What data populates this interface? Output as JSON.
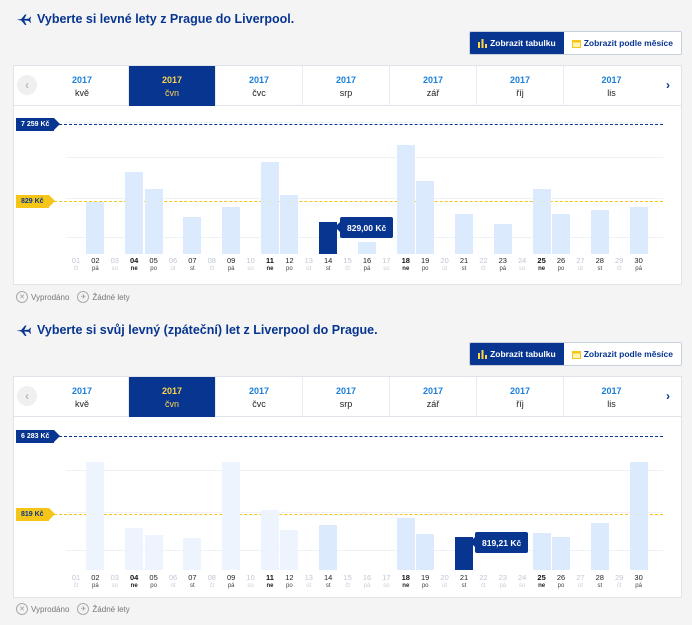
{
  "toggle": {
    "table_label": "Zobrazit tabulku",
    "month_label": "Zobrazit podle měsíce"
  },
  "legend": {
    "sold_out": "Vyprodáno",
    "no_flights": "Žádné lety"
  },
  "colors": {
    "brand": "#073590",
    "accent_yellow": "#f5c518",
    "bar": "#dbeafc",
    "bar_light": "#edf4fd"
  },
  "outbound": {
    "title": "Vyberte si levné lety z Prague do Liverpool.",
    "months": [
      {
        "year": "2017",
        "name": "kvě",
        "active": false
      },
      {
        "year": "2017",
        "name": "čvn",
        "active": true
      },
      {
        "year": "2017",
        "name": "čvc",
        "active": false
      },
      {
        "year": "2017",
        "name": "srp",
        "active": false
      },
      {
        "year": "2017",
        "name": "zář",
        "active": false
      },
      {
        "year": "2017",
        "name": "říj",
        "active": false
      },
      {
        "year": "2017",
        "name": "lis",
        "active": false
      }
    ],
    "max_price": "7 259 Kč",
    "avg_price": "829 Kč",
    "selected_price": "829,00 Kč",
    "days": [
      {
        "d": "01",
        "w": "čt",
        "s": "none",
        "b": 0
      },
      {
        "d": "02",
        "w": "pá",
        "s": "avail",
        "b": 0
      },
      {
        "d": "03",
        "w": "so",
        "s": "none",
        "b": 0
      },
      {
        "d": "04",
        "w": "ne",
        "s": "bold",
        "b": 0
      },
      {
        "d": "05",
        "w": "po",
        "s": "avail",
        "b": 0
      },
      {
        "d": "06",
        "w": "út",
        "s": "none",
        "b": 0
      },
      {
        "d": "07",
        "w": "st",
        "s": "avail",
        "b": 0
      },
      {
        "d": "08",
        "w": "čt",
        "s": "none",
        "b": 0
      },
      {
        "d": "09",
        "w": "pá",
        "s": "avail",
        "b": 0
      },
      {
        "d": "10",
        "w": "so",
        "s": "none",
        "b": 0
      },
      {
        "d": "11",
        "w": "ne",
        "s": "bold",
        "b": 0
      },
      {
        "d": "12",
        "w": "po",
        "s": "avail",
        "b": 0
      },
      {
        "d": "13",
        "w": "út",
        "s": "none",
        "b": 0
      },
      {
        "d": "14",
        "w": "st",
        "s": "avail",
        "b": 0
      },
      {
        "d": "15",
        "w": "čt",
        "s": "none",
        "b": 0
      },
      {
        "d": "16",
        "w": "pá",
        "s": "avail",
        "b": 0
      },
      {
        "d": "17",
        "w": "so",
        "s": "none",
        "b": 0
      },
      {
        "d": "18",
        "w": "ne",
        "s": "bold",
        "b": 0
      },
      {
        "d": "19",
        "w": "po",
        "s": "avail",
        "b": 0
      },
      {
        "d": "20",
        "w": "út",
        "s": "none",
        "b": 0
      },
      {
        "d": "21",
        "w": "st",
        "s": "avail",
        "b": 0
      },
      {
        "d": "22",
        "w": "čt",
        "s": "none",
        "b": 0
      },
      {
        "d": "23",
        "w": "pá",
        "s": "avail",
        "b": 0
      },
      {
        "d": "24",
        "w": "so",
        "s": "none",
        "b": 0
      },
      {
        "d": "25",
        "w": "ne",
        "s": "bold",
        "b": 0
      },
      {
        "d": "26",
        "w": "po",
        "s": "avail",
        "b": 0
      },
      {
        "d": "27",
        "w": "út",
        "s": "none",
        "b": 0
      },
      {
        "d": "28",
        "w": "st",
        "s": "avail",
        "b": 0
      },
      {
        "d": "29",
        "w": "čt",
        "s": "none",
        "b": 0
      },
      {
        "d": "30",
        "w": "pá",
        "s": "avail",
        "b": 0
      }
    ]
  },
  "return": {
    "title": "Vyberte si svůj levný (zpáteční) let z Liverpool do Prague.",
    "months": [
      {
        "year": "2017",
        "name": "kvě",
        "active": false
      },
      {
        "year": "2017",
        "name": "čvn",
        "active": true
      },
      {
        "year": "2017",
        "name": "čvc",
        "active": false
      },
      {
        "year": "2017",
        "name": "srp",
        "active": false
      },
      {
        "year": "2017",
        "name": "zář",
        "active": false
      },
      {
        "year": "2017",
        "name": "říj",
        "active": false
      },
      {
        "year": "2017",
        "name": "lis",
        "active": false
      }
    ],
    "max_price": "6 283 Kč",
    "avg_price": "819 Kč",
    "selected_price": "819,21 Kč",
    "days": [
      {
        "d": "01",
        "w": "čt",
        "s": "none",
        "b": 0
      },
      {
        "d": "02",
        "w": "pá",
        "s": "avail",
        "b": 0
      },
      {
        "d": "03",
        "w": "so",
        "s": "none",
        "b": 0
      },
      {
        "d": "04",
        "w": "ne",
        "s": "bold",
        "b": 0
      },
      {
        "d": "05",
        "w": "po",
        "s": "avail",
        "b": 0
      },
      {
        "d": "06",
        "w": "út",
        "s": "none",
        "b": 0
      },
      {
        "d": "07",
        "w": "st",
        "s": "avail",
        "b": 0
      },
      {
        "d": "08",
        "w": "čt",
        "s": "none",
        "b": 0
      },
      {
        "d": "09",
        "w": "pá",
        "s": "avail",
        "b": 0
      },
      {
        "d": "10",
        "w": "so",
        "s": "none",
        "b": 0
      },
      {
        "d": "11",
        "w": "ne",
        "s": "bold",
        "b": 0
      },
      {
        "d": "12",
        "w": "po",
        "s": "avail",
        "b": 0
      },
      {
        "d": "13",
        "w": "út",
        "s": "none",
        "b": 0
      },
      {
        "d": "14",
        "w": "st",
        "s": "avail",
        "b": 0
      },
      {
        "d": "15",
        "w": "čt",
        "s": "none",
        "b": 0
      },
      {
        "d": "16",
        "w": "pá",
        "s": "none",
        "b": 0
      },
      {
        "d": "17",
        "w": "so",
        "s": "none",
        "b": 0
      },
      {
        "d": "18",
        "w": "ne",
        "s": "bold",
        "b": 0
      },
      {
        "d": "19",
        "w": "po",
        "s": "avail",
        "b": 0
      },
      {
        "d": "20",
        "w": "út",
        "s": "none",
        "b": 0
      },
      {
        "d": "21",
        "w": "st",
        "s": "avail",
        "b": 0
      },
      {
        "d": "22",
        "w": "čt",
        "s": "none",
        "b": 0
      },
      {
        "d": "23",
        "w": "pá",
        "s": "none",
        "b": 0
      },
      {
        "d": "24",
        "w": "so",
        "s": "none",
        "b": 0
      },
      {
        "d": "25",
        "w": "ne",
        "s": "bold",
        "b": 0
      },
      {
        "d": "26",
        "w": "po",
        "s": "avail",
        "b": 0
      },
      {
        "d": "27",
        "w": "út",
        "s": "none",
        "b": 0
      },
      {
        "d": "28",
        "w": "st",
        "s": "avail",
        "b": 0
      },
      {
        "d": "29",
        "w": "čt",
        "s": "none",
        "b": 0
      },
      {
        "d": "30",
        "w": "pá",
        "s": "avail",
        "b": 0
      }
    ]
  }
}
